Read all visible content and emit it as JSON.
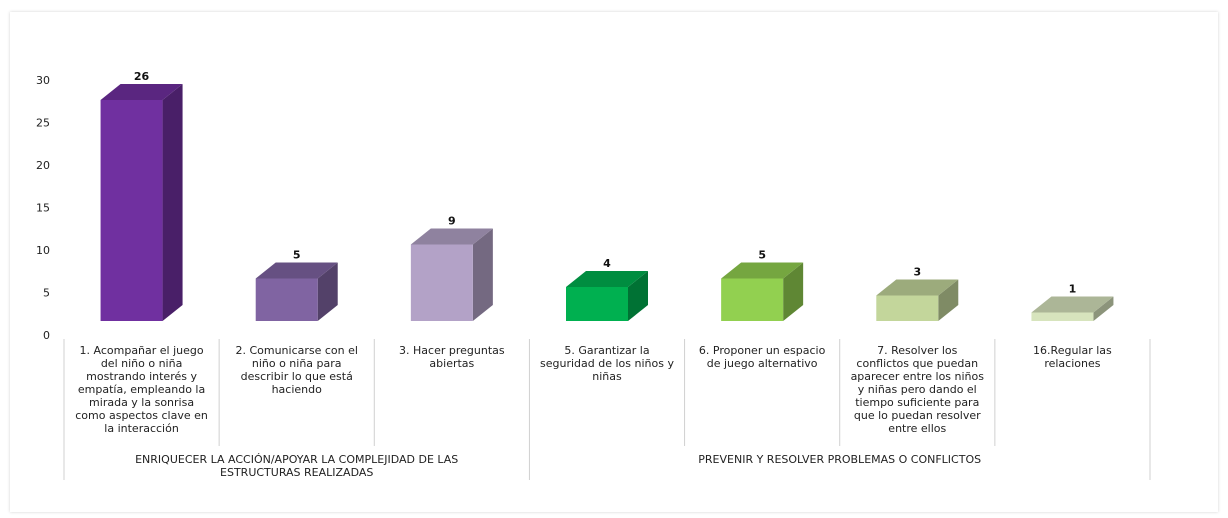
{
  "chart_data": {
    "type": "bar",
    "title": "",
    "xlabel": "",
    "ylabel": "",
    "ylim": [
      0,
      30
    ],
    "yticks": [
      0,
      5,
      10,
      15,
      20,
      25,
      30
    ],
    "grid": false,
    "legend": "none",
    "style": "3d-columns",
    "categories": [
      "1. Acompañar el juego del niño o niña mostrando interés y empatía, empleando la mirada y la sonrisa como aspectos clave en la interacción",
      "2. Comunicarse con el niño o niña para describir lo que está haciendo",
      "3. Hacer preguntas abiertas",
      "5. Garantizar la seguridad de los niños y niñas",
      "6. Proponer un espacio de juego alternativo",
      "7. Resolver los conflictos que puedan aparecer entre los niños y niñas pero dando el tiempo suficiente para que lo puedan resolver entre ellos",
      "16.Regular las relaciones"
    ],
    "values": [
      26,
      5,
      9,
      4,
      5,
      3,
      1
    ],
    "colors": [
      "#7030a0",
      "#8064a2",
      "#b3a2c7",
      "#00b050",
      "#92d050",
      "#c3d69b",
      "#d7e4bd"
    ],
    "groups": [
      {
        "label": "ENRIQUECER LA ACCIÓN/APOYAR LA COMPLEJIDAD DE LAS ESTRUCTURAS REALIZADAS",
        "span": 3
      },
      {
        "label": "PREVENIR Y RESOLVER PROBLEMAS O CONFLICTOS",
        "span": 4
      }
    ]
  }
}
